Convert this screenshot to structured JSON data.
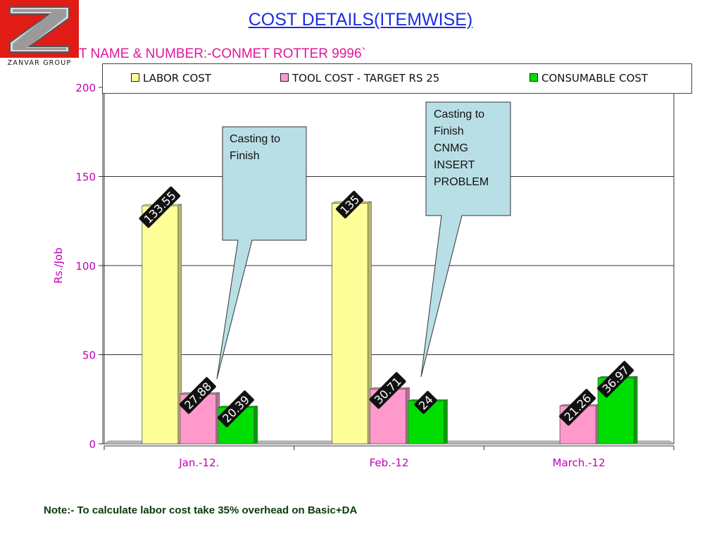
{
  "logo": {
    "text": "ZANVAR GROUP"
  },
  "header": {
    "title": "COST DETAILS(ITEMWISE)",
    "part_name": "T NAME & NUMBER:-CONMET ROTTER 9996`"
  },
  "chart_data": {
    "type": "bar",
    "categories": [
      "Jan.-12.",
      "Feb.-12",
      "March.-12"
    ],
    "series": [
      {
        "name": "LABOR COST",
        "color": "#ffff99",
        "values": [
          133.55,
          135,
          null
        ],
        "labels": [
          "133.55",
          "135",
          ""
        ]
      },
      {
        "name": "TOOL COST - TARGET RS 25",
        "color": "#ff99cc",
        "values": [
          27.88,
          30.71,
          21.26
        ],
        "labels": [
          "27.88",
          "30.71",
          "21.26"
        ]
      },
      {
        "name": "CONSUMABLE COST",
        "color": "#00dd00",
        "values": [
          20.39,
          24,
          36.97
        ],
        "labels": [
          "20.39",
          "24",
          "36.97"
        ]
      }
    ],
    "ylabel": "Rs./Job",
    "xlabel": "",
    "ylim": [
      0,
      200
    ],
    "yticks": [
      0,
      50,
      100,
      150,
      200
    ],
    "grid": true,
    "legend": "top"
  },
  "callouts": [
    {
      "text": "Casting to\nFinish"
    },
    {
      "text": "Casting to\nFinish\nCNMG\nINSERT\nPROBLEM"
    }
  ],
  "footnote": "Note:- To calculate labor cost take 35% overhead on Basic+DA"
}
